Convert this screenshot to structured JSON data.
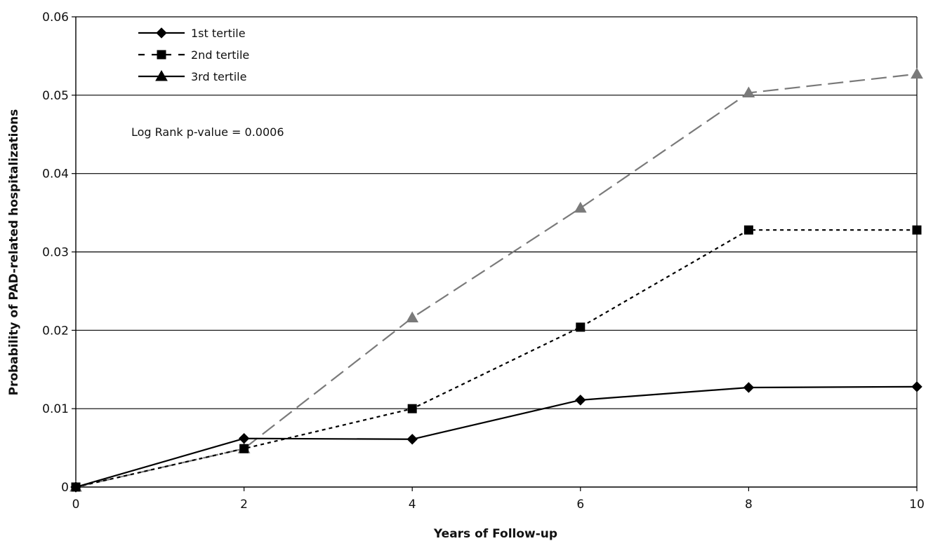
{
  "chart_data": {
    "type": "line",
    "title": "",
    "xlabel": "Years of Follow-up",
    "ylabel": "Probability of PAD-related hospitalizations",
    "xlim": [
      0,
      10
    ],
    "ylim": [
      0,
      0.06
    ],
    "xticks": [
      "0",
      "2",
      "4",
      "6",
      "8",
      "10"
    ],
    "yticks": [
      "0",
      "0.01",
      "0.02",
      "0.03",
      "0.04",
      "0.05",
      "0.06"
    ],
    "grid": "horizontal",
    "legend_position": "top-left",
    "annotation": "Log Rank p-value = 0.0006",
    "series": [
      {
        "name": "1st tertile",
        "marker": "diamond",
        "line_style": "solid",
        "color": "#000000",
        "x": [
          0,
          2,
          4,
          6,
          8,
          10
        ],
        "y": [
          0,
          0.0062,
          0.0061,
          0.0111,
          0.0127,
          0.0128
        ]
      },
      {
        "name": "2nd tertile",
        "marker": "square",
        "line_style": "dotted",
        "color": "#000000",
        "x": [
          0,
          2,
          4,
          6,
          8,
          10
        ],
        "y": [
          0,
          0.0049,
          0.01,
          0.0204,
          0.0328,
          0.0328
        ]
      },
      {
        "name": "3rd tertile",
        "marker": "triangle",
        "line_style": "dashed",
        "color": "#7a7a7a",
        "legend_color": "#000000",
        "legend_line_style": "solid",
        "x": [
          0,
          2,
          4,
          6,
          8,
          10
        ],
        "y": [
          0,
          0.0049,
          0.0216,
          0.0356,
          0.0503,
          0.0527
        ]
      }
    ]
  }
}
